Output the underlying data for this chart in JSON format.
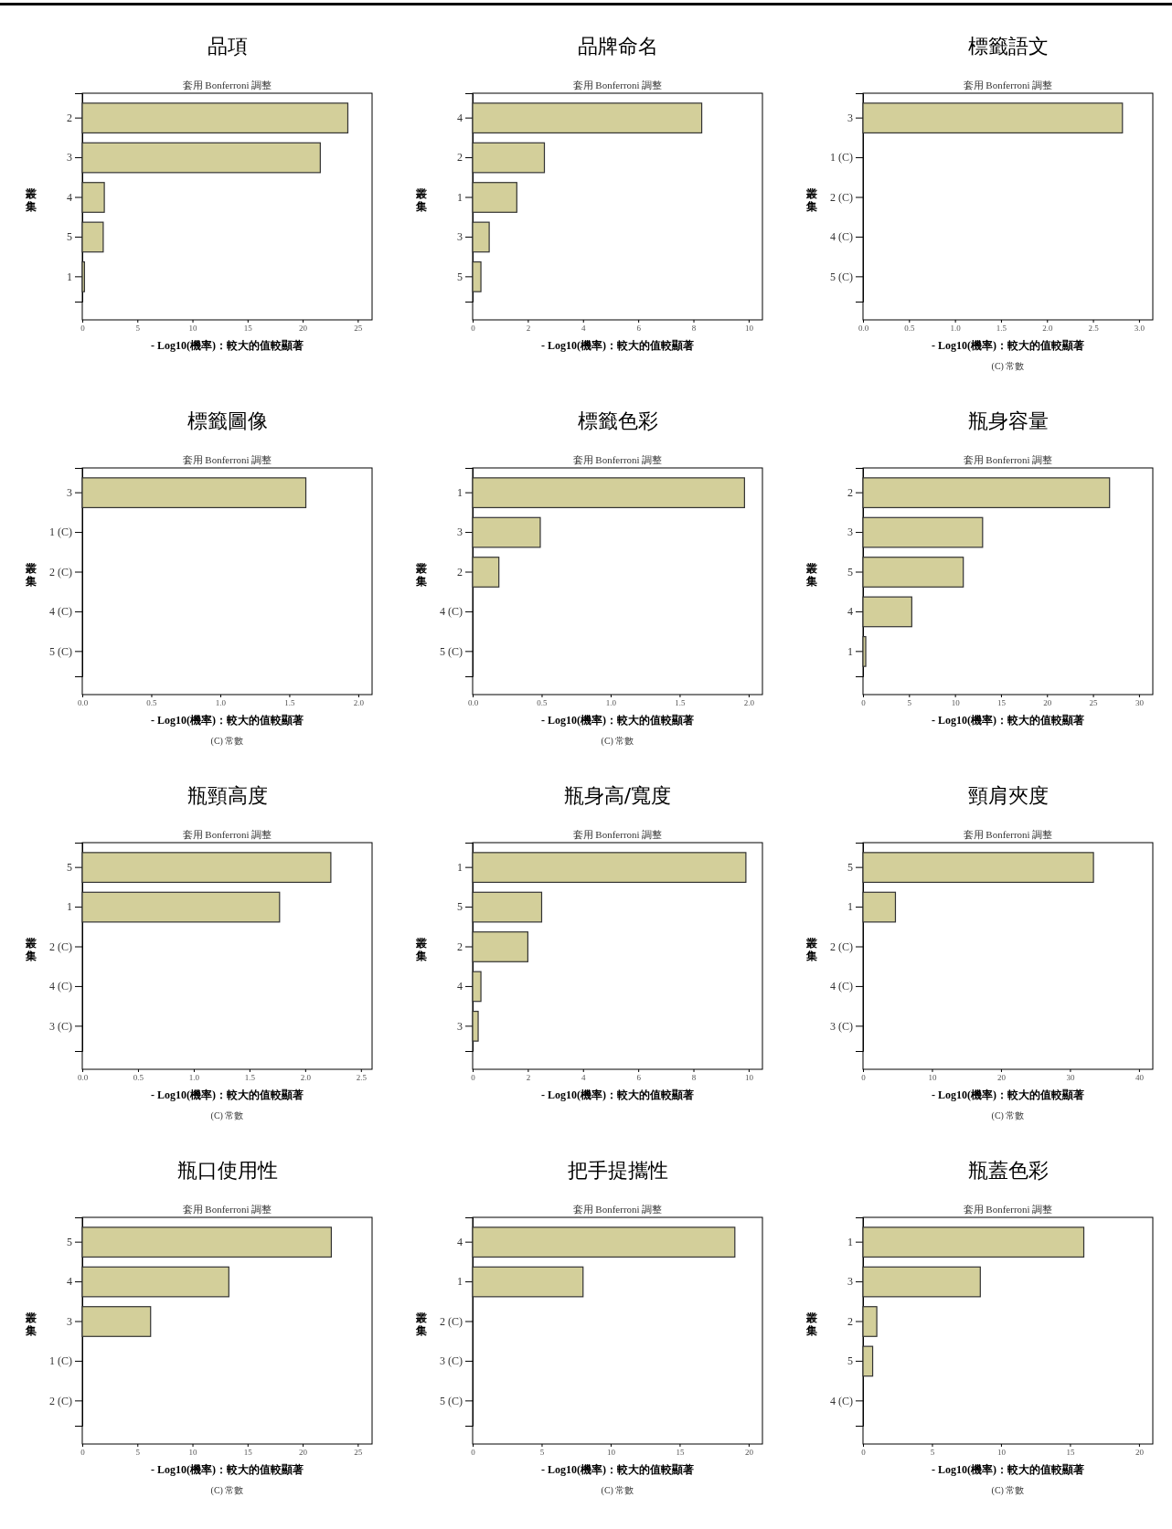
{
  "chart_data": [
    {
      "type": "bar",
      "orientation": "horizontal",
      "title": "品項",
      "subtitle": "套用 Bonferroni 調整",
      "xlabel": "- Log10(機率)：較大的值較顯著",
      "ylabel": "叢集",
      "categories": [
        "2",
        "3",
        "4",
        "5",
        "1"
      ],
      "values": [
        24.1,
        21.6,
        2.0,
        1.9,
        0.2
      ],
      "color": "#d3cf9a",
      "xlim": [
        0,
        26.3
      ],
      "xticks": [
        0,
        5,
        10,
        15,
        20,
        25
      ]
    },
    {
      "type": "bar",
      "orientation": "horizontal",
      "title": "品牌命名",
      "subtitle": "套用 Bonferroni 調整",
      "xlabel": "- Log10(機率)：較大的值較顯著",
      "ylabel": "叢集",
      "categories": [
        "4",
        "2",
        "1",
        "3",
        "5"
      ],
      "values": [
        8.3,
        2.6,
        1.6,
        0.6,
        0.3
      ],
      "color": "#d3cf9a",
      "xlim": [
        0,
        10.5
      ],
      "xticks": [
        0,
        2,
        4,
        6,
        8,
        10
      ]
    },
    {
      "type": "bar",
      "orientation": "horizontal",
      "title": "標籤語文",
      "subtitle": "套用 Bonferroni 調整",
      "xlabel": "- Log10(機率)：較大的值較顯著",
      "ylabel": "叢集",
      "annotations": [
        "(C) 常數"
      ],
      "categories": [
        "3",
        "1 (C)",
        "2 (C)",
        "4 (C)",
        "5 (C)"
      ],
      "values": [
        2.82,
        0,
        0,
        0,
        0
      ],
      "color": "#d3cf9a",
      "xlim": [
        0,
        3.15
      ],
      "xticks": [
        {
          "value": 0,
          "label": "0.0"
        },
        0.5,
        {
          "value": 1,
          "label": "1.0"
        },
        1.5,
        {
          "value": 2,
          "label": "2.0"
        },
        2.5,
        {
          "value": 3,
          "label": "3.0"
        }
      ]
    },
    {
      "type": "bar",
      "orientation": "horizontal",
      "title": "標籤圖像",
      "subtitle": "套用 Bonferroni 調整",
      "xlabel": "- Log10(機率)：較大的值較顯著",
      "ylabel": "叢集",
      "annotations": [
        "(C) 常數"
      ],
      "categories": [
        "3",
        "1 (C)",
        "2 (C)",
        "4 (C)",
        "5 (C)"
      ],
      "values": [
        1.62,
        0,
        0,
        0,
        0
      ],
      "color": "#d3cf9a",
      "xlim": [
        0,
        2.1
      ],
      "xticks": [
        {
          "value": 0,
          "label": "0.0"
        },
        0.5,
        {
          "value": 1,
          "label": "1.0"
        },
        1.5,
        {
          "value": 2,
          "label": "2.0"
        }
      ]
    },
    {
      "type": "bar",
      "orientation": "horizontal",
      "title": "標籤色彩",
      "subtitle": "套用 Bonferroni 調整",
      "xlabel": "- Log10(機率)：較大的值較顯著",
      "ylabel": "叢集",
      "annotations": [
        "(C) 常數"
      ],
      "categories": [
        "1",
        "3",
        "2",
        "4 (C)",
        "5 (C)"
      ],
      "values": [
        1.97,
        0.49,
        0.19,
        0,
        0
      ],
      "color": "#d3cf9a",
      "xlim": [
        0,
        2.1
      ],
      "xticks": [
        {
          "value": 0,
          "label": "0.0"
        },
        0.5,
        {
          "value": 1,
          "label": "1.0"
        },
        1.5,
        {
          "value": 2,
          "label": "2.0"
        }
      ]
    },
    {
      "type": "bar",
      "orientation": "horizontal",
      "title": "瓶身容量",
      "subtitle": "套用 Bonferroni 調整",
      "xlabel": "- Log10(機率)：較大的值較顯著",
      "ylabel": "叢集",
      "categories": [
        "2",
        "3",
        "5",
        "4",
        "1"
      ],
      "values": [
        26.8,
        13.0,
        10.9,
        5.3,
        0.3
      ],
      "color": "#d3cf9a",
      "xlim": [
        0,
        31.5
      ],
      "xticks": [
        0,
        5,
        10,
        15,
        20,
        25,
        30
      ]
    },
    {
      "type": "bar",
      "orientation": "horizontal",
      "title": "瓶頸高度",
      "subtitle": "套用 Bonferroni 調整",
      "xlabel": "- Log10(機率)：較大的值較顯著",
      "ylabel": "叢集",
      "annotations": [
        "(C) 常數"
      ],
      "categories": [
        "5",
        "1",
        "2 (C)",
        "4 (C)",
        "3 (C)"
      ],
      "values": [
        2.23,
        1.77,
        0,
        0,
        0
      ],
      "color": "#d3cf9a",
      "xlim": [
        0,
        2.6
      ],
      "xticks": [
        {
          "value": 0,
          "label": "0.0"
        },
        0.5,
        {
          "value": 1,
          "label": "1.0"
        },
        1.5,
        {
          "value": 2,
          "label": "2.0"
        },
        2.5
      ]
    },
    {
      "type": "bar",
      "orientation": "horizontal",
      "title": "瓶身高/寬度",
      "subtitle": "套用 Bonferroni 調整",
      "xlabel": "- Log10(機率)：較大的值較顯著",
      "ylabel": "叢集",
      "categories": [
        "1",
        "5",
        "2",
        "4",
        "3"
      ],
      "values": [
        9.9,
        2.5,
        2.0,
        0.3,
        0.2
      ],
      "color": "#d3cf9a",
      "xlim": [
        0,
        10.5
      ],
      "xticks": [
        0,
        2,
        4,
        6,
        8,
        10
      ]
    },
    {
      "type": "bar",
      "orientation": "horizontal",
      "title": "頸肩夾度",
      "subtitle": "套用 Bonferroni 調整",
      "xlabel": "- Log10(機率)：較大的值較顯著",
      "ylabel": "叢集",
      "annotations": [
        "(C) 常數"
      ],
      "categories": [
        "5",
        "1",
        "2 (C)",
        "4 (C)",
        "3 (C)"
      ],
      "values": [
        33.4,
        4.7,
        0,
        0,
        0
      ],
      "color": "#d3cf9a",
      "xlim": [
        0,
        42
      ],
      "xticks": [
        0,
        10,
        20,
        30,
        40
      ]
    },
    {
      "type": "bar",
      "orientation": "horizontal",
      "title": "瓶口使用性",
      "subtitle": "套用 Bonferroni 調整",
      "xlabel": "- Log10(機率)：較大的值較顯著",
      "ylabel": "叢集",
      "annotations": [
        "(C) 常數"
      ],
      "categories": [
        "5",
        "4",
        "3",
        "1 (C)",
        "2 (C)"
      ],
      "values": [
        22.6,
        13.3,
        6.2,
        0,
        0
      ],
      "color": "#d3cf9a",
      "xlim": [
        0,
        26.3
      ],
      "xticks": [
        0,
        5,
        10,
        15,
        20,
        25
      ]
    },
    {
      "type": "bar",
      "orientation": "horizontal",
      "title": "把手提攜性",
      "subtitle": "套用 Bonferroni 調整",
      "xlabel": "- Log10(機率)：較大的值較顯著",
      "ylabel": "叢集",
      "annotations": [
        "(C) 常數"
      ],
      "categories": [
        "4",
        "1",
        "2 (C)",
        "3 (C)",
        "5 (C)"
      ],
      "values": [
        19.0,
        8.0,
        0,
        0,
        0
      ],
      "color": "#d3cf9a",
      "xlim": [
        0,
        21
      ],
      "xticks": [
        0,
        5,
        10,
        15,
        20
      ]
    },
    {
      "type": "bar",
      "orientation": "horizontal",
      "title": "瓶蓋色彩",
      "subtitle": "套用 Bonferroni 調整",
      "xlabel": "- Log10(機率)：較大的值較顯著",
      "ylabel": "叢集",
      "annotations": [
        "(C) 常數"
      ],
      "categories": [
        "1",
        "3",
        "2",
        "5",
        "4 (C)"
      ],
      "values": [
        16.0,
        8.5,
        1.0,
        0.7,
        0
      ],
      "color": "#d3cf9a",
      "xlim": [
        0,
        21
      ],
      "xticks": [
        0,
        5,
        10,
        15,
        20
      ]
    }
  ]
}
